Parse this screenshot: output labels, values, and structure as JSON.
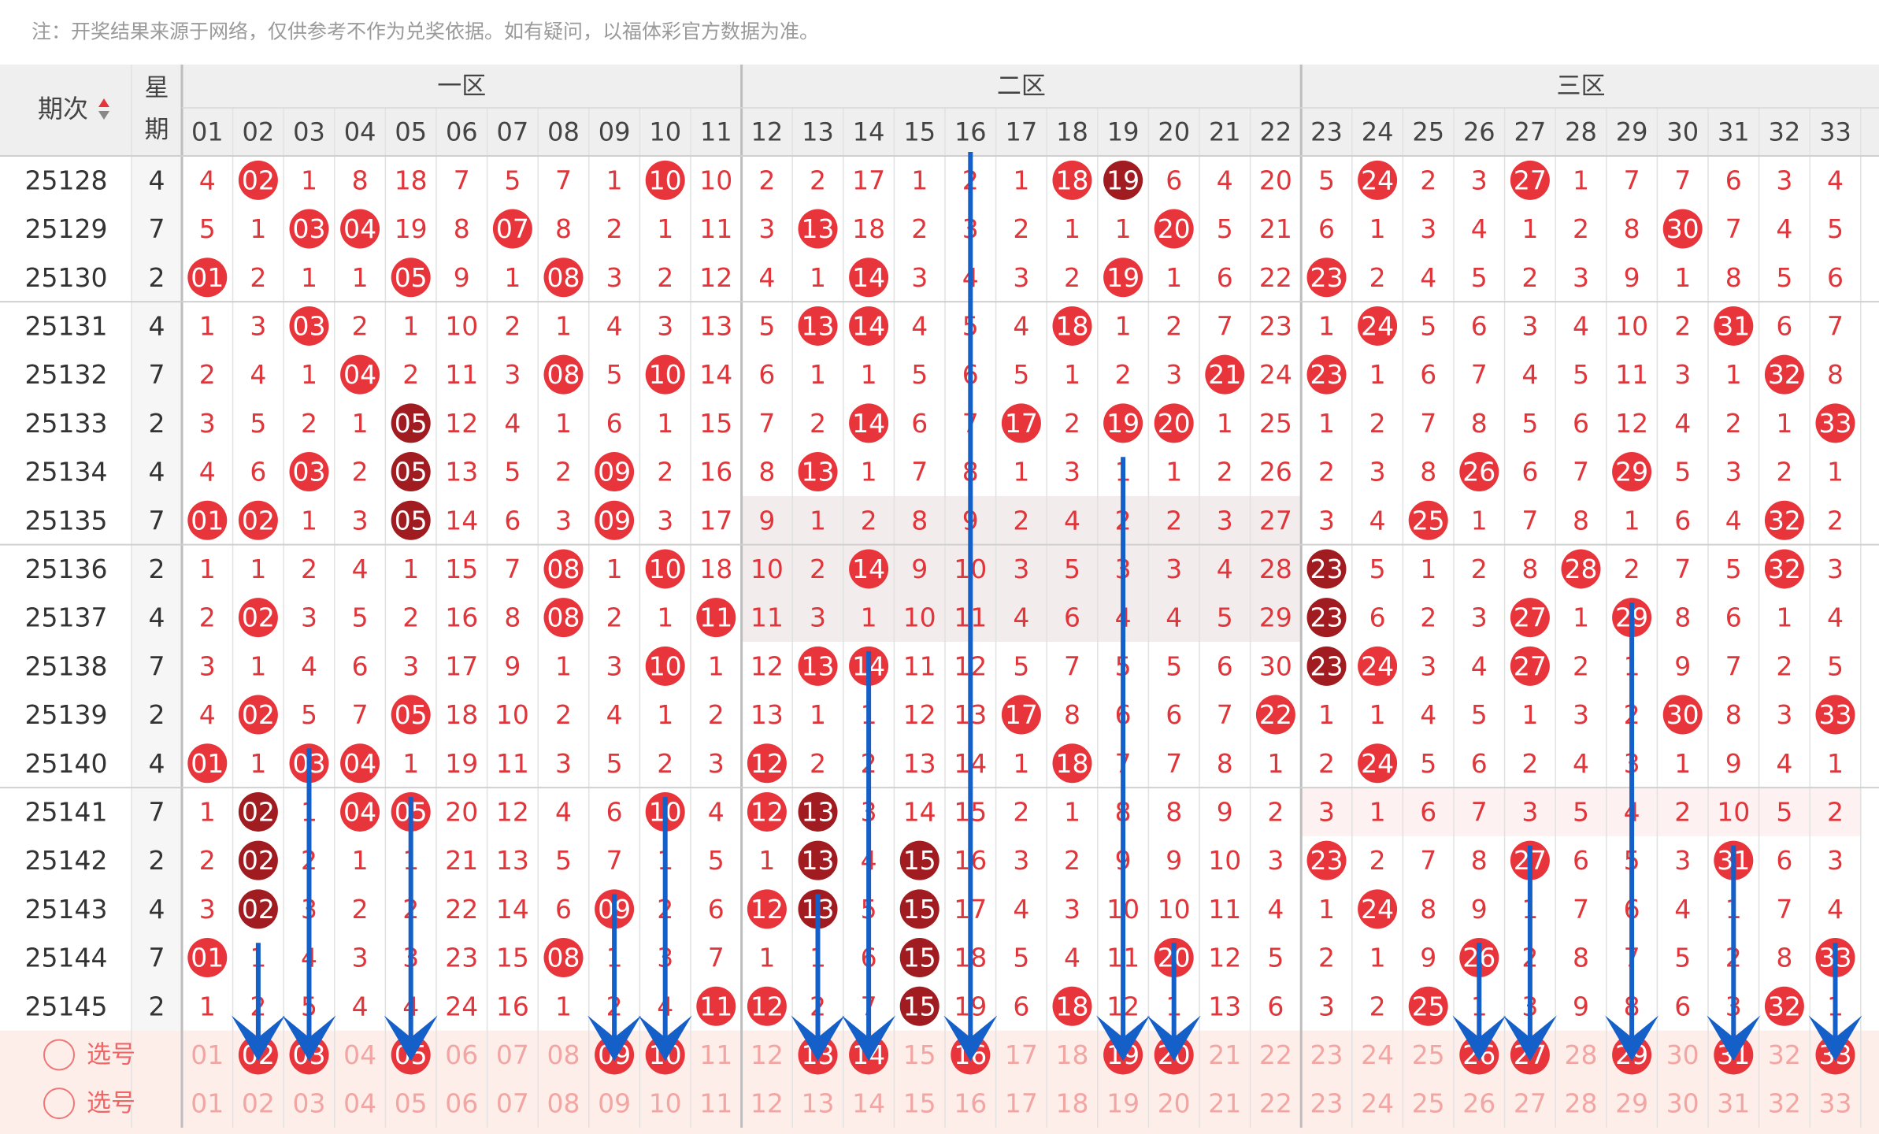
{
  "note": "注：开奖结果来源于网络，仅供参考不作为兑奖依据。如有疑问，以福体彩官方数据为准。",
  "ball_colors": {
    "red": "#e8353c",
    "dark": "#a01c20"
  },
  "header": {
    "issue": "期次",
    "weekday": [
      "星",
      "期"
    ],
    "zones": [
      "一区",
      "二区",
      "三区"
    ],
    "numbers": [
      "01",
      "02",
      "03",
      "04",
      "05",
      "06",
      "07",
      "08",
      "09",
      "10",
      "11",
      "12",
      "13",
      "14",
      "15",
      "16",
      "17",
      "18",
      "19",
      "20",
      "21",
      "22",
      "23",
      "24",
      "25",
      "26",
      "27",
      "28",
      "29",
      "30",
      "31",
      "32",
      "33"
    ]
  },
  "rows": [
    {
      "issue": "25128",
      "weekday": "4",
      "cells": [
        "4",
        {
          "text": "02",
          "ball": "red"
        },
        "1",
        "8",
        "18",
        "7",
        "5",
        "7",
        "1",
        {
          "text": "10",
          "ball": "red"
        },
        "10",
        "2",
        "2",
        "17",
        "1",
        "2",
        "1",
        {
          "text": "18",
          "ball": "red"
        },
        {
          "text": "19",
          "ball": "dark"
        },
        "6",
        "4",
        "20",
        "5",
        {
          "text": "24",
          "ball": "red"
        },
        "2",
        "3",
        {
          "text": "27",
          "ball": "red"
        },
        "1",
        "7",
        "7",
        "6",
        "3",
        "4"
      ]
    },
    {
      "issue": "25129",
      "weekday": "7",
      "cells": [
        "5",
        "1",
        {
          "text": "03",
          "ball": "red"
        },
        {
          "text": "04",
          "ball": "red"
        },
        "19",
        "8",
        {
          "text": "07",
          "ball": "red"
        },
        "8",
        "2",
        "1",
        "11",
        "3",
        {
          "text": "13",
          "ball": "red"
        },
        "18",
        "2",
        "3",
        "2",
        "1",
        "1",
        {
          "text": "20",
          "ball": "red"
        },
        "5",
        "21",
        "6",
        "1",
        "3",
        "4",
        "1",
        "2",
        "8",
        {
          "text": "30",
          "ball": "red"
        },
        "7",
        "4",
        "5"
      ]
    },
    {
      "issue": "25130",
      "weekday": "2",
      "cells": [
        {
          "text": "01",
          "ball": "red"
        },
        "2",
        "1",
        "1",
        {
          "text": "05",
          "ball": "red"
        },
        "9",
        "1",
        {
          "text": "08",
          "ball": "red"
        },
        "3",
        "2",
        "12",
        "4",
        "1",
        {
          "text": "14",
          "ball": "red"
        },
        "3",
        "4",
        "3",
        "2",
        {
          "text": "19",
          "ball": "red"
        },
        "1",
        "6",
        "22",
        {
          "text": "23",
          "ball": "red"
        },
        "2",
        "4",
        "5",
        "2",
        "3",
        "9",
        "1",
        "8",
        "5",
        "6"
      ]
    },
    {
      "issue": "25131",
      "weekday": "4",
      "cells": [
        "1",
        "3",
        {
          "text": "03",
          "ball": "red"
        },
        "2",
        "1",
        "10",
        "2",
        "1",
        "4",
        "3",
        "13",
        "5",
        {
          "text": "13",
          "ball": "red"
        },
        {
          "text": "14",
          "ball": "red"
        },
        "4",
        "5",
        "4",
        {
          "text": "18",
          "ball": "red"
        },
        "1",
        "2",
        "7",
        "23",
        "1",
        {
          "text": "24",
          "ball": "red"
        },
        "5",
        "6",
        "3",
        "4",
        "10",
        "2",
        {
          "text": "31",
          "ball": "red"
        },
        "6",
        "7"
      ]
    },
    {
      "issue": "25132",
      "weekday": "7",
      "cells": [
        "2",
        "4",
        "1",
        {
          "text": "04",
          "ball": "red"
        },
        "2",
        "11",
        "3",
        {
          "text": "08",
          "ball": "red"
        },
        "5",
        {
          "text": "10",
          "ball": "red"
        },
        "14",
        "6",
        "1",
        "1",
        "5",
        "6",
        "5",
        "1",
        "2",
        "3",
        {
          "text": "21",
          "ball": "red"
        },
        "24",
        {
          "text": "23",
          "ball": "red"
        },
        "1",
        "6",
        "7",
        "4",
        "5",
        "11",
        "3",
        "1",
        {
          "text": "32",
          "ball": "red"
        },
        "8"
      ]
    },
    {
      "issue": "25133",
      "weekday": "2",
      "cells": [
        "3",
        "5",
        "2",
        "1",
        {
          "text": "05",
          "ball": "dark"
        },
        "12",
        "4",
        "1",
        "6",
        "1",
        "15",
        "7",
        "2",
        {
          "text": "14",
          "ball": "red"
        },
        "6",
        "7",
        {
          "text": "17",
          "ball": "red"
        },
        "2",
        {
          "text": "19",
          "ball": "red"
        },
        {
          "text": "20",
          "ball": "red"
        },
        "1",
        "25",
        "1",
        "2",
        "7",
        "8",
        "5",
        "6",
        "12",
        "4",
        "2",
        "1",
        {
          "text": "33",
          "ball": "red"
        }
      ]
    },
    {
      "issue": "25134",
      "weekday": "4",
      "cells": [
        "4",
        "6",
        {
          "text": "03",
          "ball": "red"
        },
        "2",
        {
          "text": "05",
          "ball": "dark"
        },
        "13",
        "5",
        "2",
        {
          "text": "09",
          "ball": "red"
        },
        "2",
        "16",
        "8",
        {
          "text": "13",
          "ball": "red"
        },
        "1",
        "7",
        "8",
        "1",
        "3",
        "1",
        "1",
        "2",
        "26",
        "2",
        "3",
        "8",
        {
          "text": "26",
          "ball": "red"
        },
        "6",
        "7",
        {
          "text": "29",
          "ball": "red"
        },
        "5",
        "3",
        "2",
        "1"
      ]
    },
    {
      "issue": "25135",
      "weekday": "7",
      "cells": [
        {
          "text": "01",
          "ball": "red"
        },
        {
          "text": "02",
          "ball": "red"
        },
        "1",
        "3",
        {
          "text": "05",
          "ball": "dark"
        },
        "14",
        "6",
        "3",
        {
          "text": "09",
          "ball": "red"
        },
        "3",
        "17",
        "9",
        "1",
        "2",
        "8",
        "9",
        "2",
        "4",
        "2",
        "2",
        "3",
        "27",
        "3",
        "4",
        {
          "text": "25",
          "ball": "red"
        },
        "1",
        "7",
        "8",
        "1",
        "6",
        "4",
        {
          "text": "32",
          "ball": "red"
        },
        "2"
      ]
    },
    {
      "issue": "25136",
      "weekday": "2",
      "cells": [
        "1",
        "1",
        "2",
        "4",
        "1",
        "15",
        "7",
        {
          "text": "08",
          "ball": "red"
        },
        "1",
        {
          "text": "10",
          "ball": "red"
        },
        "18",
        "10",
        "2",
        {
          "text": "14",
          "ball": "red"
        },
        "9",
        "10",
        "3",
        "5",
        "3",
        "3",
        "4",
        "28",
        {
          "text": "23",
          "ball": "dark"
        },
        "5",
        "1",
        "2",
        "8",
        {
          "text": "28",
          "ball": "red"
        },
        "2",
        "7",
        "5",
        {
          "text": "32",
          "ball": "red"
        },
        "3"
      ]
    },
    {
      "issue": "25137",
      "weekday": "4",
      "cells": [
        "2",
        {
          "text": "02",
          "ball": "red"
        },
        "3",
        "5",
        "2",
        "16",
        "8",
        {
          "text": "08",
          "ball": "red"
        },
        "2",
        "1",
        {
          "text": "11",
          "ball": "red"
        },
        "11",
        "3",
        "1",
        "10",
        "11",
        "4",
        "6",
        "4",
        "4",
        "5",
        "29",
        {
          "text": "23",
          "ball": "dark"
        },
        "6",
        "2",
        "3",
        {
          "text": "27",
          "ball": "red"
        },
        "1",
        {
          "text": "29",
          "ball": "red"
        },
        "8",
        "6",
        "1",
        "4"
      ]
    },
    {
      "issue": "25138",
      "weekday": "7",
      "cells": [
        "3",
        "1",
        "4",
        "6",
        "3",
        "17",
        "9",
        "1",
        "3",
        {
          "text": "10",
          "ball": "red"
        },
        "1",
        "12",
        {
          "text": "13",
          "ball": "red"
        },
        {
          "text": "14",
          "ball": "red"
        },
        "11",
        "12",
        "5",
        "7",
        "5",
        "5",
        "6",
        "30",
        {
          "text": "23",
          "ball": "dark"
        },
        {
          "text": "24",
          "ball": "red"
        },
        "3",
        "4",
        {
          "text": "27",
          "ball": "red"
        },
        "2",
        "1",
        "9",
        "7",
        "2",
        "5"
      ]
    },
    {
      "issue": "25139",
      "weekday": "2",
      "cells": [
        "4",
        {
          "text": "02",
          "ball": "red"
        },
        "5",
        "7",
        {
          "text": "05",
          "ball": "red"
        },
        "18",
        "10",
        "2",
        "4",
        "1",
        "2",
        "13",
        "1",
        "1",
        "12",
        "13",
        {
          "text": "17",
          "ball": "red"
        },
        "8",
        "6",
        "6",
        "7",
        {
          "text": "22",
          "ball": "red"
        },
        "1",
        "1",
        "4",
        "5",
        "1",
        "3",
        "2",
        {
          "text": "30",
          "ball": "red"
        },
        "8",
        "3",
        {
          "text": "33",
          "ball": "red"
        }
      ]
    },
    {
      "issue": "25140",
      "weekday": "4",
      "cells": [
        {
          "text": "01",
          "ball": "red"
        },
        "1",
        {
          "text": "03",
          "ball": "red"
        },
        {
          "text": "04",
          "ball": "red"
        },
        "1",
        "19",
        "11",
        "3",
        "5",
        "2",
        "3",
        {
          "text": "12",
          "ball": "red"
        },
        "2",
        "2",
        "13",
        "14",
        "1",
        {
          "text": "18",
          "ball": "red"
        },
        "7",
        "7",
        "8",
        "1",
        "2",
        {
          "text": "24",
          "ball": "red"
        },
        "5",
        "6",
        "2",
        "4",
        "3",
        "1",
        "9",
        "4",
        "1"
      ]
    },
    {
      "issue": "25141",
      "weekday": "7",
      "cells": [
        "1",
        {
          "text": "02",
          "ball": "dark"
        },
        "1",
        {
          "text": "04",
          "ball": "red"
        },
        {
          "text": "05",
          "ball": "red"
        },
        "20",
        "12",
        "4",
        "6",
        {
          "text": "10",
          "ball": "red"
        },
        "4",
        {
          "text": "12",
          "ball": "red"
        },
        {
          "text": "13",
          "ball": "dark"
        },
        "3",
        "14",
        "15",
        "2",
        "1",
        "8",
        "8",
        "9",
        "2",
        "3",
        "1",
        "6",
        "7",
        "3",
        "5",
        "4",
        "2",
        "10",
        "5",
        "2"
      ]
    },
    {
      "issue": "25142",
      "weekday": "2",
      "cells": [
        "2",
        {
          "text": "02",
          "ball": "dark"
        },
        "2",
        "1",
        "1",
        "21",
        "13",
        "5",
        "7",
        "1",
        "5",
        "1",
        {
          "text": "13",
          "ball": "dark"
        },
        "4",
        {
          "text": "15",
          "ball": "dark"
        },
        "16",
        "3",
        "2",
        "9",
        "9",
        "10",
        "3",
        {
          "text": "23",
          "ball": "red"
        },
        "2",
        "7",
        "8",
        {
          "text": "27",
          "ball": "red"
        },
        "6",
        "5",
        "3",
        {
          "text": "31",
          "ball": "red"
        },
        "6",
        "3"
      ]
    },
    {
      "issue": "25143",
      "weekday": "4",
      "cells": [
        "3",
        {
          "text": "02",
          "ball": "dark"
        },
        "3",
        "2",
        "2",
        "22",
        "14",
        "6",
        {
          "text": "09",
          "ball": "red"
        },
        "2",
        "6",
        {
          "text": "12",
          "ball": "red"
        },
        {
          "text": "13",
          "ball": "dark"
        },
        "5",
        {
          "text": "15",
          "ball": "dark"
        },
        "17",
        "4",
        "3",
        "10",
        "10",
        "11",
        "4",
        "1",
        {
          "text": "24",
          "ball": "red"
        },
        "8",
        "9",
        "1",
        "7",
        "6",
        "4",
        "1",
        "7",
        "4"
      ]
    },
    {
      "issue": "25144",
      "weekday": "7",
      "cells": [
        {
          "text": "01",
          "ball": "red"
        },
        "1",
        "4",
        "3",
        "3",
        "23",
        "15",
        {
          "text": "08",
          "ball": "red"
        },
        "1",
        "3",
        "7",
        "1",
        "1",
        "6",
        {
          "text": "15",
          "ball": "dark"
        },
        "18",
        "5",
        "4",
        "11",
        {
          "text": "20",
          "ball": "red"
        },
        "12",
        "5",
        "2",
        "1",
        "9",
        {
          "text": "26",
          "ball": "red"
        },
        "2",
        "8",
        "7",
        "5",
        "2",
        "8",
        {
          "text": "33",
          "ball": "red"
        }
      ]
    },
    {
      "issue": "25145",
      "weekday": "2",
      "cells": [
        "1",
        "2",
        "5",
        "4",
        "4",
        "24",
        "16",
        "1",
        "2",
        "4",
        {
          "text": "11",
          "ball": "red"
        },
        {
          "text": "12",
          "ball": "red"
        },
        "2",
        "7",
        {
          "text": "15",
          "ball": "dark"
        },
        "19",
        "6",
        {
          "text": "18",
          "ball": "red"
        },
        "12",
        "1",
        "13",
        "6",
        "3",
        "2",
        {
          "text": "25",
          "ball": "red"
        },
        "1",
        "3",
        "9",
        "8",
        "6",
        "3",
        {
          "text": "32",
          "ball": "red"
        },
        "1"
      ]
    }
  ],
  "picker": [
    {
      "label": "选号",
      "cells": [
        "01",
        {
          "text": "02",
          "ball": "red"
        },
        {
          "text": "03",
          "ball": "red"
        },
        "04",
        {
          "text": "05",
          "ball": "red"
        },
        "06",
        "07",
        "08",
        {
          "text": "09",
          "ball": "red"
        },
        {
          "text": "10",
          "ball": "red"
        },
        "11",
        "12",
        {
          "text": "13",
          "ball": "red"
        },
        {
          "text": "14",
          "ball": "red"
        },
        "15",
        {
          "text": "16",
          "ball": "red"
        },
        "17",
        "18",
        {
          "text": "19",
          "ball": "red"
        },
        {
          "text": "20",
          "ball": "red"
        },
        "21",
        "22",
        "23",
        "24",
        "25",
        {
          "text": "26",
          "ball": "red"
        },
        {
          "text": "27",
          "ball": "red"
        },
        "28",
        {
          "text": "29",
          "ball": "red"
        },
        "30",
        {
          "text": "31",
          "ball": "red"
        },
        "32",
        {
          "text": "33",
          "ball": "red"
        }
      ]
    },
    {
      "label": "选号",
      "cells": [
        "01",
        "02",
        "03",
        "04",
        "05",
        "06",
        "07",
        "08",
        "09",
        "10",
        "11",
        "12",
        "13",
        "14",
        "15",
        "16",
        "17",
        "18",
        "19",
        "20",
        "21",
        "22",
        "23",
        "24",
        "25",
        "26",
        "27",
        "28",
        "29",
        "30",
        "31",
        "32",
        "33"
      ]
    }
  ]
}
